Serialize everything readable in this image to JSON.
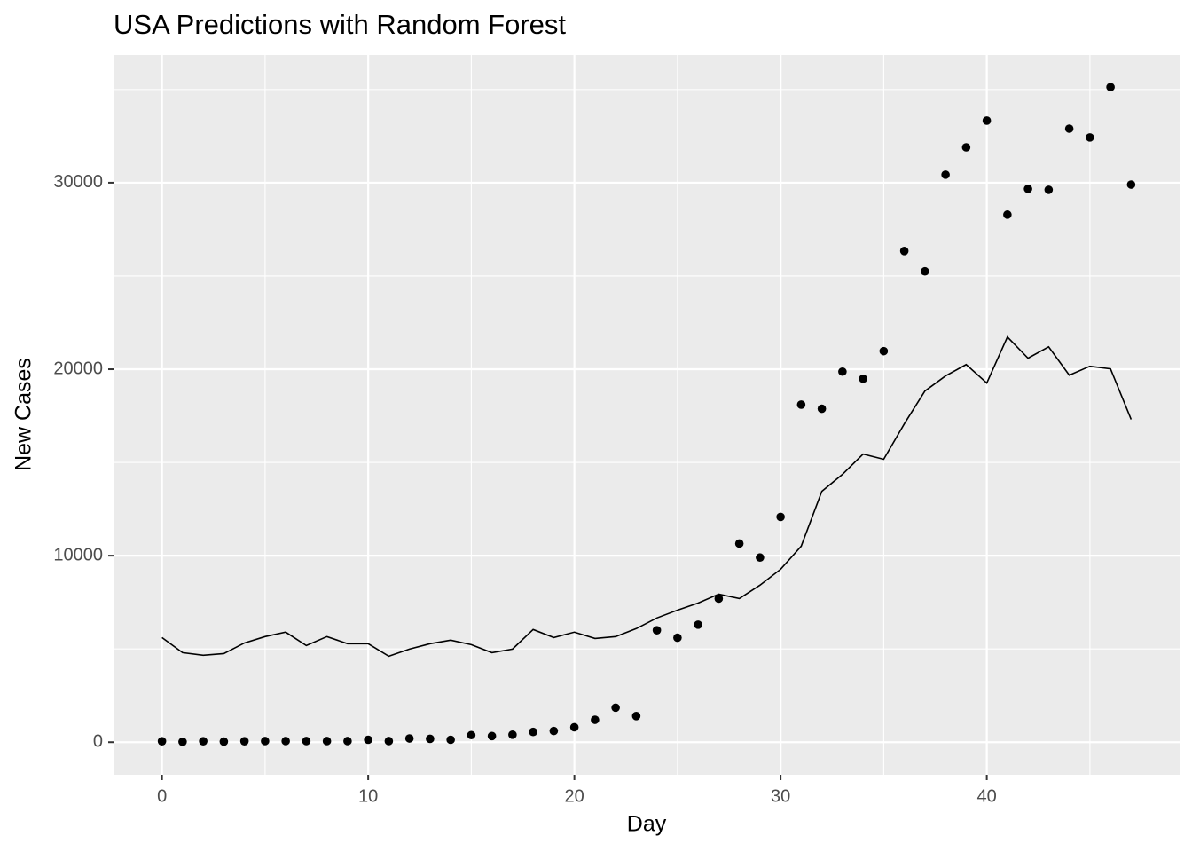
{
  "chart_data": {
    "type": "line",
    "title": "USA Predictions with Random Forest",
    "x_label": "Day",
    "y_label": "New Cases",
    "x": [
      0,
      1,
      2,
      3,
      4,
      5,
      6,
      7,
      8,
      9,
      10,
      11,
      12,
      13,
      14,
      15,
      16,
      17,
      18,
      19,
      20,
      21,
      22,
      23,
      24,
      25,
      26,
      27,
      28,
      29,
      30,
      31,
      32,
      33,
      34,
      35,
      36,
      37,
      38,
      39,
      40,
      41,
      42,
      43,
      44,
      45,
      46,
      47
    ],
    "series": [
      {
        "style": "point",
        "color": "#000000",
        "values": [
          50,
          20,
          50,
          30,
          50,
          60,
          60,
          60,
          60,
          60,
          130,
          60,
          200,
          180,
          130,
          380,
          330,
          400,
          550,
          600,
          800,
          1200,
          1850,
          1400,
          6000,
          5600,
          6300,
          7700,
          10650,
          9900,
          12080,
          18100,
          17880,
          19870,
          19490,
          20970,
          26340,
          25250,
          30430,
          31900,
          33330,
          28290,
          29670,
          29620,
          32900,
          32430,
          35130,
          29900
        ]
      },
      {
        "style": "line",
        "color": "#000000",
        "values": [
          5610,
          4800,
          4660,
          4750,
          5320,
          5660,
          5900,
          5180,
          5660,
          5280,
          5280,
          4610,
          4990,
          5280,
          5470,
          5230,
          4800,
          4990,
          6040,
          5610,
          5900,
          5560,
          5660,
          6090,
          6660,
          7080,
          7460,
          7940,
          7700,
          8420,
          9270,
          10510,
          13450,
          14360,
          15450,
          15170,
          17070,
          18830,
          19640,
          20250,
          19260,
          21730,
          20590,
          21200,
          19680,
          20160,
          20020,
          17310
        ]
      }
    ],
    "xlim": [
      -2.35,
      49.35
    ],
    "ylim": [
      -1750,
      36850
    ],
    "xticks": [
      0,
      10,
      20,
      30,
      40
    ],
    "yticks": [
      0,
      10000,
      20000,
      30000
    ],
    "xminor": [
      5,
      15,
      25,
      35,
      45
    ],
    "yminor": [
      5000,
      15000,
      25000,
      35000
    ],
    "grid": true,
    "panel_color": "#EBEBEB"
  }
}
